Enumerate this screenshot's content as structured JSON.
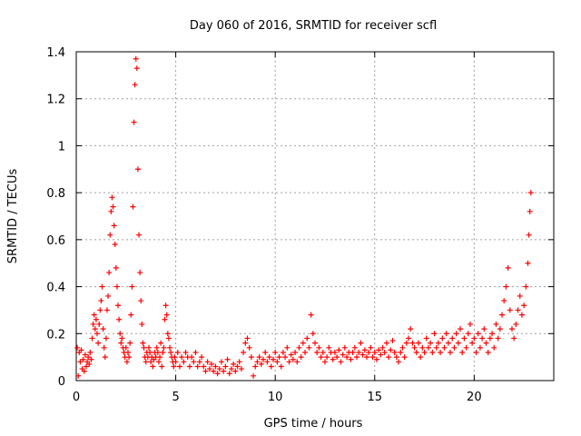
{
  "chart_data": {
    "type": "scatter",
    "title": "Day 060 of 2016, SRMTID for receiver scfl",
    "xlabel": "GPS time / hours",
    "ylabel": "SRMTID / TECUs",
    "xlim": [
      0,
      24
    ],
    "ylim": [
      0,
      1.4
    ],
    "x_ticks": [
      0,
      5,
      10,
      15,
      20
    ],
    "x_tick_labels": [
      "0",
      "5",
      "10",
      "15",
      "20"
    ],
    "y_ticks": [
      0,
      0.2,
      0.4,
      0.6,
      0.8,
      1.0,
      1.2,
      1.4
    ],
    "y_tick_labels": [
      "0",
      "0.2",
      "0.4",
      "0.6",
      "0.8",
      "1",
      "1.2",
      "1.4"
    ],
    "grid": true,
    "marker": "+",
    "series": [
      {
        "name": "SRMTID",
        "color": "#ff0000",
        "points": [
          [
            0.05,
            0.14
          ],
          [
            0.1,
            0.02
          ],
          [
            0.15,
            0.12
          ],
          [
            0.2,
            0.08
          ],
          [
            0.25,
            0.13
          ],
          [
            0.3,
            0.05
          ],
          [
            0.35,
            0.09
          ],
          [
            0.4,
            0.04
          ],
          [
            0.45,
            0.11
          ],
          [
            0.5,
            0.06
          ],
          [
            0.55,
            0.08
          ],
          [
            0.6,
            0.1
          ],
          [
            0.65,
            0.07
          ],
          [
            0.7,
            0.12
          ],
          [
            0.75,
            0.09
          ],
          [
            0.8,
            0.18
          ],
          [
            0.85,
            0.24
          ],
          [
            0.9,
            0.28
          ],
          [
            0.95,
            0.22
          ],
          [
            1.0,
            0.26
          ],
          [
            1.05,
            0.2
          ],
          [
            1.1,
            0.16
          ],
          [
            1.15,
            0.24
          ],
          [
            1.2,
            0.3
          ],
          [
            1.25,
            0.34
          ],
          [
            1.3,
            0.4
          ],
          [
            1.35,
            0.22
          ],
          [
            1.4,
            0.14
          ],
          [
            1.45,
            0.1
          ],
          [
            1.5,
            0.18
          ],
          [
            1.55,
            0.3
          ],
          [
            1.6,
            0.36
          ],
          [
            1.65,
            0.46
          ],
          [
            1.7,
            0.62
          ],
          [
            1.75,
            0.72
          ],
          [
            1.8,
            0.78
          ],
          [
            1.85,
            0.74
          ],
          [
            1.9,
            0.66
          ],
          [
            1.95,
            0.58
          ],
          [
            2.0,
            0.48
          ],
          [
            2.05,
            0.4
          ],
          [
            2.1,
            0.32
          ],
          [
            2.15,
            0.26
          ],
          [
            2.2,
            0.2
          ],
          [
            2.25,
            0.16
          ],
          [
            2.3,
            0.18
          ],
          [
            2.35,
            0.14
          ],
          [
            2.4,
            0.12
          ],
          [
            2.45,
            0.1
          ],
          [
            2.5,
            0.14
          ],
          [
            2.55,
            0.08
          ],
          [
            2.6,
            0.12
          ],
          [
            2.65,
            0.1
          ],
          [
            2.7,
            0.16
          ],
          [
            2.75,
            0.28
          ],
          [
            2.8,
            0.4
          ],
          [
            2.85,
            0.74
          ],
          [
            2.9,
            1.1
          ],
          [
            2.95,
            1.26
          ],
          [
            3.0,
            1.37
          ],
          [
            3.05,
            1.33
          ],
          [
            3.1,
            0.9
          ],
          [
            3.15,
            0.62
          ],
          [
            3.2,
            0.46
          ],
          [
            3.25,
            0.34
          ],
          [
            3.3,
            0.24
          ],
          [
            3.35,
            0.16
          ],
          [
            3.4,
            0.14
          ],
          [
            3.45,
            0.1
          ],
          [
            3.5,
            0.08
          ],
          [
            3.55,
            0.12
          ],
          [
            3.6,
            0.1
          ],
          [
            3.65,
            0.14
          ],
          [
            3.7,
            0.12
          ],
          [
            3.75,
            0.08
          ],
          [
            3.8,
            0.1
          ],
          [
            3.85,
            0.06
          ],
          [
            3.9,
            0.09
          ],
          [
            3.95,
            0.12
          ],
          [
            4.0,
            0.1
          ],
          [
            4.05,
            0.14
          ],
          [
            4.1,
            0.12
          ],
          [
            4.15,
            0.08
          ],
          [
            4.2,
            0.1
          ],
          [
            4.25,
            0.16
          ],
          [
            4.3,
            0.06
          ],
          [
            4.35,
            0.12
          ],
          [
            4.4,
            0.14
          ],
          [
            4.45,
            0.26
          ],
          [
            4.5,
            0.32
          ],
          [
            4.55,
            0.28
          ],
          [
            4.6,
            0.2
          ],
          [
            4.65,
            0.18
          ],
          [
            4.7,
            0.14
          ],
          [
            4.75,
            0.12
          ],
          [
            4.8,
            0.1
          ],
          [
            4.85,
            0.08
          ],
          [
            4.9,
            0.06
          ],
          [
            4.95,
            0.1
          ],
          [
            5.0,
            0.08
          ],
          [
            5.1,
            0.12
          ],
          [
            5.2,
            0.06
          ],
          [
            5.3,
            0.1
          ],
          [
            5.4,
            0.08
          ],
          [
            5.5,
            0.12
          ],
          [
            5.6,
            0.1
          ],
          [
            5.7,
            0.06
          ],
          [
            5.8,
            0.1
          ],
          [
            5.9,
            0.08
          ],
          [
            6.0,
            0.12
          ],
          [
            6.1,
            0.06
          ],
          [
            6.2,
            0.08
          ],
          [
            6.3,
            0.1
          ],
          [
            6.4,
            0.06
          ],
          [
            6.5,
            0.04
          ],
          [
            6.6,
            0.08
          ],
          [
            6.7,
            0.05
          ],
          [
            6.8,
            0.07
          ],
          [
            6.9,
            0.04
          ],
          [
            7.0,
            0.06
          ],
          [
            7.1,
            0.03
          ],
          [
            7.2,
            0.05
          ],
          [
            7.3,
            0.08
          ],
          [
            7.4,
            0.04
          ],
          [
            7.5,
            0.06
          ],
          [
            7.6,
            0.09
          ],
          [
            7.7,
            0.03
          ],
          [
            7.8,
            0.05
          ],
          [
            7.9,
            0.07
          ],
          [
            8.0,
            0.04
          ],
          [
            8.1,
            0.06
          ],
          [
            8.2,
            0.08
          ],
          [
            8.3,
            0.05
          ],
          [
            8.4,
            0.12
          ],
          [
            8.5,
            0.16
          ],
          [
            8.6,
            0.18
          ],
          [
            8.7,
            0.14
          ],
          [
            8.8,
            0.1
          ],
          [
            8.9,
            0.02
          ],
          [
            9.0,
            0.06
          ],
          [
            9.1,
            0.08
          ],
          [
            9.2,
            0.1
          ],
          [
            9.3,
            0.07
          ],
          [
            9.4,
            0.09
          ],
          [
            9.5,
            0.12
          ],
          [
            9.6,
            0.08
          ],
          [
            9.7,
            0.1
          ],
          [
            9.8,
            0.06
          ],
          [
            9.9,
            0.09
          ],
          [
            10.0,
            0.12
          ],
          [
            10.1,
            0.08
          ],
          [
            10.2,
            0.1
          ],
          [
            10.3,
            0.06
          ],
          [
            10.4,
            0.12
          ],
          [
            10.5,
            0.1
          ],
          [
            10.6,
            0.14
          ],
          [
            10.7,
            0.08
          ],
          [
            10.8,
            0.11
          ],
          [
            10.9,
            0.09
          ],
          [
            11.0,
            0.12
          ],
          [
            11.1,
            0.08
          ],
          [
            11.2,
            0.14
          ],
          [
            11.3,
            0.1
          ],
          [
            11.4,
            0.16
          ],
          [
            11.5,
            0.12
          ],
          [
            11.6,
            0.18
          ],
          [
            11.7,
            0.14
          ],
          [
            11.8,
            0.28
          ],
          [
            11.9,
            0.2
          ],
          [
            12.0,
            0.16
          ],
          [
            12.1,
            0.12
          ],
          [
            12.2,
            0.14
          ],
          [
            12.3,
            0.1
          ],
          [
            12.4,
            0.12
          ],
          [
            12.5,
            0.08
          ],
          [
            12.6,
            0.1
          ],
          [
            12.7,
            0.14
          ],
          [
            12.8,
            0.12
          ],
          [
            12.9,
            0.09
          ],
          [
            13.0,
            0.12
          ],
          [
            13.1,
            0.1
          ],
          [
            13.2,
            0.13
          ],
          [
            13.3,
            0.08
          ],
          [
            13.4,
            0.11
          ],
          [
            13.5,
            0.14
          ],
          [
            13.6,
            0.1
          ],
          [
            13.7,
            0.12
          ],
          [
            13.8,
            0.09
          ],
          [
            13.9,
            0.12
          ],
          [
            14.0,
            0.14
          ],
          [
            14.1,
            0.1
          ],
          [
            14.2,
            0.12
          ],
          [
            14.3,
            0.16
          ],
          [
            14.4,
            0.11
          ],
          [
            14.5,
            0.13
          ],
          [
            14.6,
            0.1
          ],
          [
            14.7,
            0.12
          ],
          [
            14.8,
            0.14
          ],
          [
            14.9,
            0.1
          ],
          [
            15.0,
            0.12
          ],
          [
            15.1,
            0.09
          ],
          [
            15.2,
            0.13
          ],
          [
            15.3,
            0.11
          ],
          [
            15.4,
            0.14
          ],
          [
            15.5,
            0.12
          ],
          [
            15.6,
            0.16
          ],
          [
            15.7,
            0.1
          ],
          [
            15.8,
            0.13
          ],
          [
            15.9,
            0.17
          ],
          [
            16.0,
            0.12
          ],
          [
            16.1,
            0.1
          ],
          [
            16.2,
            0.08
          ],
          [
            16.3,
            0.12
          ],
          [
            16.4,
            0.14
          ],
          [
            16.5,
            0.1
          ],
          [
            16.6,
            0.16
          ],
          [
            16.7,
            0.18
          ],
          [
            16.8,
            0.22
          ],
          [
            16.9,
            0.16
          ],
          [
            17.0,
            0.14
          ],
          [
            17.1,
            0.12
          ],
          [
            17.2,
            0.16
          ],
          [
            17.3,
            0.1
          ],
          [
            17.4,
            0.14
          ],
          [
            17.5,
            0.12
          ],
          [
            17.6,
            0.18
          ],
          [
            17.7,
            0.14
          ],
          [
            17.8,
            0.16
          ],
          [
            17.9,
            0.12
          ],
          [
            18.0,
            0.2
          ],
          [
            18.1,
            0.14
          ],
          [
            18.2,
            0.16
          ],
          [
            18.3,
            0.12
          ],
          [
            18.4,
            0.18
          ],
          [
            18.5,
            0.14
          ],
          [
            18.6,
            0.2
          ],
          [
            18.7,
            0.16
          ],
          [
            18.8,
            0.12
          ],
          [
            18.9,
            0.18
          ],
          [
            19.0,
            0.14
          ],
          [
            19.1,
            0.2
          ],
          [
            19.2,
            0.16
          ],
          [
            19.3,
            0.22
          ],
          [
            19.4,
            0.12
          ],
          [
            19.5,
            0.18
          ],
          [
            19.6,
            0.14
          ],
          [
            19.7,
            0.2
          ],
          [
            19.8,
            0.24
          ],
          [
            19.9,
            0.16
          ],
          [
            20.0,
            0.18
          ],
          [
            20.1,
            0.12
          ],
          [
            20.2,
            0.2
          ],
          [
            20.3,
            0.14
          ],
          [
            20.4,
            0.18
          ],
          [
            20.5,
            0.22
          ],
          [
            20.6,
            0.16
          ],
          [
            20.7,
            0.12
          ],
          [
            20.8,
            0.18
          ],
          [
            20.9,
            0.2
          ],
          [
            21.0,
            0.14
          ],
          [
            21.1,
            0.24
          ],
          [
            21.2,
            0.18
          ],
          [
            21.3,
            0.22
          ],
          [
            21.4,
            0.28
          ],
          [
            21.5,
            0.34
          ],
          [
            21.6,
            0.4
          ],
          [
            21.7,
            0.48
          ],
          [
            21.8,
            0.3
          ],
          [
            21.9,
            0.22
          ],
          [
            22.0,
            0.18
          ],
          [
            22.1,
            0.24
          ],
          [
            22.2,
            0.3
          ],
          [
            22.3,
            0.36
          ],
          [
            22.4,
            0.28
          ],
          [
            22.5,
            0.32
          ],
          [
            22.6,
            0.4
          ],
          [
            22.7,
            0.5
          ],
          [
            22.75,
            0.62
          ],
          [
            22.8,
            0.72
          ],
          [
            22.85,
            0.8
          ]
        ]
      }
    ]
  }
}
